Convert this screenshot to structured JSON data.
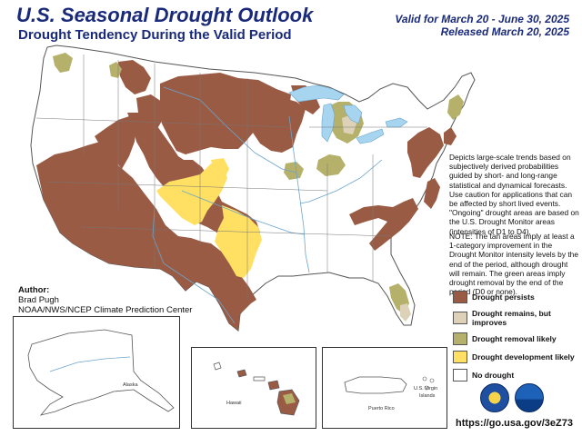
{
  "header": {
    "title": "U.S. Seasonal Drought Outlook",
    "subtitle": "Drought Tendency During the Valid Period",
    "valid_line": "Valid for March 20 - June 30, 2025",
    "released_line": "Released March 20, 2025"
  },
  "description": "Depicts large-scale trends based on subjectively derived probabilities guided by short- and long-range statistical and dynamical forecasts. Use caution for applications that can be affected by short lived events. \"Ongoing\" drought areas are based on the U.S. Drought Monitor areas (intensities of D1 to D4).",
  "note": "NOTE: The tan areas imply at least a 1-category improvement in the Drought Monitor intensity levels by the end of the period, although drought will remain. The green areas imply drought removal by the end of the period (D0 or none).",
  "legend": {
    "items": [
      {
        "label": "Drought persists",
        "color": "#9a5b44"
      },
      {
        "label": "Drought remains, but improves",
        "color": "#ddd2b7"
      },
      {
        "label": "Drought removal likely",
        "color": "#b5b06a"
      },
      {
        "label": "Drought development likely",
        "color": "#ffe063"
      },
      {
        "label": "No drought",
        "color": "#ffffff"
      }
    ]
  },
  "author": {
    "heading": "Author:",
    "name": "Brad Pugh",
    "org": "NOAA/NWS/NCEP Climate Prediction Center"
  },
  "insets": {
    "alaska": "Alaska",
    "hawaii": "Hawaii",
    "puerto_rico": "Puerto Rico",
    "virgin_islands_1": "U.S. Virgin",
    "virgin_islands_2": "Islands"
  },
  "url": "https://go.usa.gov/3eZ73",
  "colors": {
    "persist": "#9a5b44",
    "improve": "#ddd2b7",
    "removal": "#b5b06a",
    "development": "#ffe063",
    "water": "#a7d4ee",
    "border": "#555555"
  }
}
